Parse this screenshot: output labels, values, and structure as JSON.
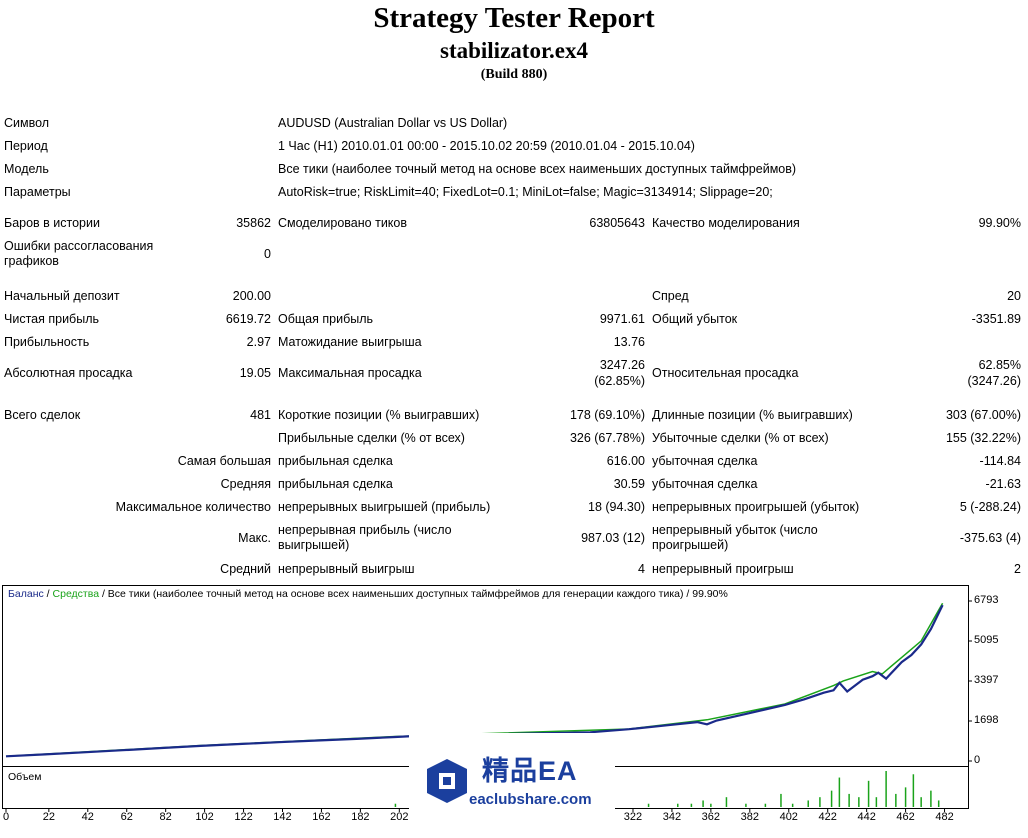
{
  "header": {
    "title": "Strategy Tester Report",
    "subtitle": "stabilizator.ex4",
    "build": "(Build 880)"
  },
  "info": {
    "symbol_label": "Символ",
    "symbol_value": "AUDUSD (Australian Dollar vs US Dollar)",
    "period_label": "Период",
    "period_value": "1 Час (H1) 2010.01.01 00:00 - 2015.10.02 20:59 (2010.01.04 - 2015.10.04)",
    "model_label": "Модель",
    "model_value": "Все тики (наиболее точный метод на основе всех наименьших доступных таймфреймов)",
    "params_label": "Параметры",
    "params_value": "AutoRisk=true; RiskLimit=40; FixedLot=0.1; MiniLot=false; Magic=3134914; Slippage=20;"
  },
  "stats": {
    "bars_label": "Баров в истории",
    "bars_value": "35862",
    "ticks_label": "Смоделировано тиков",
    "ticks_value": "63805643",
    "quality_label": "Качество моделирования",
    "quality_value": "99.90%",
    "errors_label": "Ошибки рассогласования графиков",
    "errors_value": "0",
    "deposit_label": "Начальный депозит",
    "deposit_value": "200.00",
    "spread_label": "Спред",
    "spread_value": "20",
    "net_label": "Чистая прибыль",
    "net_value": "6619.72",
    "gross_profit_label": "Общая прибыль",
    "gross_profit_value": "9971.61",
    "gross_loss_label": "Общий убыток",
    "gross_loss_value": "-3351.89",
    "pf_label": "Прибыльность",
    "pf_value": "2.97",
    "expected_label": "Матожидание выигрыша",
    "expected_value": "13.76",
    "abs_dd_label": "Абсолютная просадка",
    "abs_dd_value": "19.05",
    "max_dd_label": "Максимальная просадка",
    "max_dd_value_1": "3247.26",
    "max_dd_value_2": "(62.85%)",
    "rel_dd_label": "Относительная просадка",
    "rel_dd_value_1": "62.85%",
    "rel_dd_value_2": "(3247.26)",
    "total_label": "Всего сделок",
    "total_value": "481",
    "short_label": "Короткие позиции (% выигравших)",
    "short_value": "178 (69.10%)",
    "long_label": "Длинные позиции (% выигравших)",
    "long_value": "303 (67.00%)",
    "profit_trades_label": "Прибыльные сделки (% от всех)",
    "profit_trades_value": "326 (67.78%)",
    "loss_trades_label": "Убыточные сделки (% от всех)",
    "loss_trades_value": "155 (32.22%)",
    "largest_label": "Самая большая",
    "largest_profit_label": "прибыльная сделка",
    "largest_profit_value": "616.00",
    "largest_loss_label": "убыточная сделка",
    "largest_loss_value": "-114.84",
    "average_label": "Средняя",
    "average_profit_label": "прибыльная сделка",
    "average_profit_value": "30.59",
    "average_loss_label": "убыточная сделка",
    "average_loss_value": "-21.63",
    "max_count_label": "Максимальное количество",
    "max_wins_label": "непрерывных выигрышей (прибыль)",
    "max_wins_value": "18 (94.30)",
    "max_losses_label": "непрерывных проигрышей (убыток)",
    "max_losses_value": "5 (-288.24)",
    "maxc_label": "Макс.",
    "maxc_profit_label": "непрерывная прибыль (число выигрышей)",
    "maxc_profit_value": "987.03 (12)",
    "maxc_loss_label": "непрерывный убыток (число проигрышей)",
    "maxc_loss_value": "-375.63 (4)",
    "avgc_label": "Средний",
    "avgc_win_label": "непрерывный выигрыш",
    "avgc_win_value": "4",
    "avgc_loss_label": "непрерывный проигрыш",
    "avgc_loss_value": "2"
  },
  "chart": {
    "legend_balance": "Баланс",
    "legend_sep1": " / ",
    "legend_equity": "Средства",
    "legend_rest": " / Все тики (наиболее точный метод на основе всех наименьших доступных таймфреймов для генерации каждого тика) / 99.90%",
    "volume_label": "Объем",
    "colors": {
      "balance": "#1a2a8a",
      "equity": "#1aa31a",
      "volume": "#1aa31a"
    }
  },
  "chart_data": {
    "type": "line",
    "y_ticks": [
      0,
      1698,
      3397,
      5095,
      6793
    ],
    "x_ticks": [
      0,
      22,
      42,
      62,
      82,
      102,
      122,
      142,
      162,
      182,
      202,
      322,
      342,
      362,
      382,
      402,
      422,
      442,
      462,
      482
    ],
    "xlim": [
      0,
      492
    ],
    "ylim": [
      0,
      6793
    ],
    "series": [
      {
        "name": "Баланс",
        "x": [
          0,
          20,
          40,
          60,
          80,
          100,
          120,
          140,
          160,
          180,
          200,
          210,
          300,
          320,
          340,
          355,
          360,
          365,
          380,
          400,
          410,
          420,
          425,
          428,
          432,
          440,
          445,
          448,
          452,
          460,
          465,
          470,
          475,
          481
        ],
        "y": [
          200,
          280,
          370,
          460,
          550,
          640,
          720,
          800,
          870,
          940,
          1020,
          1060,
          1220,
          1350,
          1520,
          1650,
          1560,
          1720,
          2000,
          2380,
          2620,
          2900,
          3000,
          3320,
          2950,
          3450,
          3600,
          3750,
          3500,
          4200,
          4500,
          4950,
          5600,
          6620
        ]
      },
      {
        "name": "Средства",
        "x": [
          0,
          100,
          200,
          320,
          360,
          400,
          425,
          430,
          445,
          450,
          460,
          470,
          481
        ],
        "y": [
          200,
          660,
          1040,
          1360,
          1750,
          2420,
          3200,
          3400,
          3800,
          3700,
          4400,
          5100,
          6700
        ]
      },
      {
        "name": "Объем",
        "x": [
          200,
          330,
          345,
          352,
          358,
          362,
          370,
          380,
          390,
          398,
          404,
          412,
          418,
          424,
          428,
          433,
          438,
          443,
          447,
          452,
          457,
          462,
          466,
          470,
          475,
          479
        ],
        "y": [
          1,
          1,
          1,
          1,
          2,
          1,
          3,
          1,
          1,
          4,
          1,
          2,
          3,
          5,
          9,
          4,
          3,
          8,
          3,
          11,
          4,
          6,
          10,
          3,
          5,
          2
        ]
      }
    ]
  }
}
